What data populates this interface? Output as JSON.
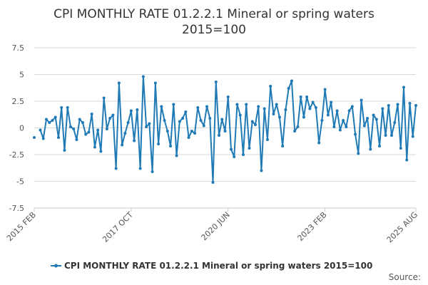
{
  "chart_data": {
    "type": "line",
    "title_line1": "CPI MONTHLY RATE 01.2.2.1 Mineral or spring waters",
    "title_line2": "2015=100",
    "xlabel": "",
    "ylabel": "",
    "ylim": [
      -7.5,
      7.5
    ],
    "y_ticks": [
      7.5,
      5,
      2.5,
      0,
      -2.5,
      -5,
      -7.5
    ],
    "y_tick_labels": [
      "7.5",
      "5",
      "2.5",
      "0",
      "-2.5",
      "-5",
      "-7.5"
    ],
    "x_start": "2015 FEB",
    "x_end": "2025 AUG",
    "x_ticks": [
      {
        "label": "2015 FEB",
        "index": 0
      },
      {
        "label": "2017 OCT",
        "index": 32
      },
      {
        "label": "2020 JUN",
        "index": 64
      },
      {
        "label": "2023 FEB",
        "index": 96
      },
      {
        "label": "2025 AUG",
        "index": 126
      }
    ],
    "series": [
      {
        "name": "CPI MONTHLY RATE 01.2.2.1 Mineral or spring waters 2015=100",
        "color": "#1f7ab6",
        "values": [
          -0.9,
          null,
          -0.2,
          -1.0,
          0.8,
          0.5,
          0.7,
          1.0,
          -0.9,
          1.9,
          -2.1,
          1.9,
          0.1,
          -0.1,
          -1.1,
          0.8,
          0.5,
          -0.6,
          -0.4,
          1.3,
          -1.8,
          -0.2,
          -2.2,
          2.8,
          -0.1,
          0.9,
          1.2,
          -3.8,
          4.2,
          -1.6,
          -0.5,
          0.5,
          1.6,
          -1.2,
          1.7,
          -3.8,
          4.8,
          0.1,
          0.4,
          -4.1,
          4.2,
          -1.5,
          2.0,
          0.7,
          -0.3,
          -1.7,
          2.2,
          -2.6,
          0.6,
          0.9,
          1.5,
          -0.9,
          -0.3,
          -0.5,
          1.9,
          0.7,
          0.2,
          2.0,
          0.9,
          -5.1,
          4.3,
          -0.7,
          0.8,
          -0.3,
          2.9,
          -2.0,
          -2.7,
          2.2,
          1.2,
          -2.5,
          2.2,
          -1.9,
          0.6,
          0.3,
          2.0,
          -4.0,
          1.8,
          -1.1,
          3.9,
          1.3,
          2.2,
          1.0,
          -1.7,
          1.7,
          3.7,
          4.4,
          -0.3,
          0.1,
          2.9,
          1.0,
          2.9,
          1.8,
          2.4,
          1.9,
          -1.4,
          0.7,
          3.6,
          1.2,
          2.4,
          0.1,
          1.6,
          -0.2,
          0.7,
          0.1,
          1.6,
          2.0,
          -0.6,
          -2.4,
          2.6,
          0.2,
          0.9,
          -2.0,
          1.2,
          0.8,
          -1.7,
          1.8,
          -0.7,
          2.1,
          -0.7,
          0.5,
          2.2,
          -1.9,
          3.8,
          -3.0,
          2.3,
          -0.8,
          2.1
        ]
      }
    ],
    "legend_position": "bottom-center",
    "grid": true
  },
  "source_label": "Source:"
}
